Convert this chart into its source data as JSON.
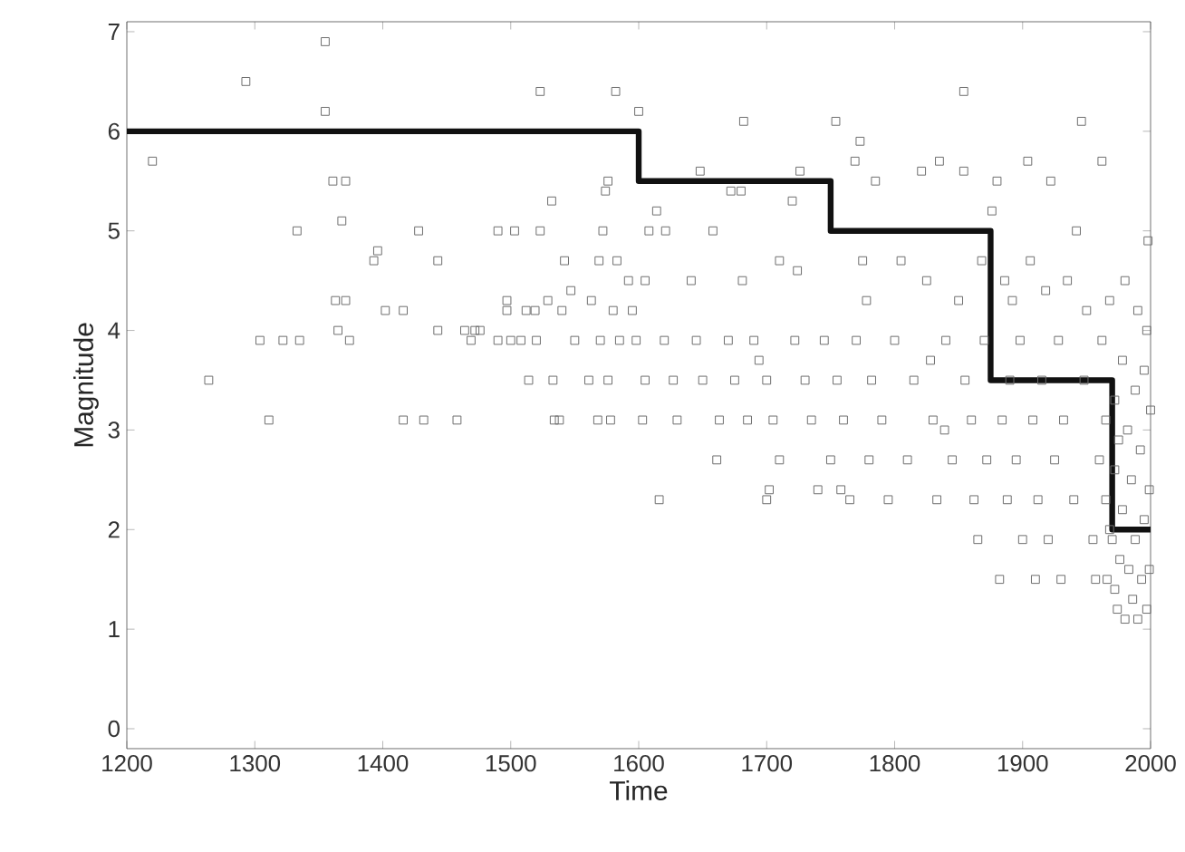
{
  "chart_data": {
    "type": "scatter",
    "xlabel": "Time",
    "ylabel": "Magnitude",
    "xlim": [
      1200,
      2000
    ],
    "xticks": [
      1200,
      1300,
      1400,
      1500,
      1600,
      1700,
      1800,
      1900,
      2000
    ],
    "ylim": [
      -0.2,
      7.1
    ],
    "yticks": [
      0,
      1,
      2,
      3,
      4,
      5,
      6,
      7
    ],
    "grid": false,
    "series": [
      {
        "marker": "square",
        "color": "#6e6e6e",
        "x": [
          1220,
          1264,
          1293,
          1304,
          1311,
          1322,
          1333,
          1335,
          1355,
          1355,
          1361,
          1363,
          1365,
          1368,
          1371,
          1371,
          1374,
          1393,
          1396,
          1402,
          1416,
          1416,
          1428,
          1432,
          1443,
          1443,
          1458,
          1464,
          1469,
          1472,
          1476,
          1490,
          1490,
          1497,
          1497,
          1500,
          1503,
          1508,
          1512,
          1514,
          1519,
          1520,
          1523,
          1523,
          1529,
          1532,
          1533,
          1534,
          1538,
          1540,
          1542,
          1547,
          1550,
          1561,
          1563,
          1568,
          1569,
          1570,
          1572,
          1574,
          1576,
          1576,
          1578,
          1580,
          1582,
          1583,
          1585,
          1592,
          1595,
          1598,
          1600,
          1603,
          1605,
          1605,
          1608,
          1614,
          1616,
          1620,
          1621,
          1627,
          1630,
          1641,
          1645,
          1648,
          1650,
          1658,
          1661,
          1663,
          1670,
          1672,
          1675,
          1680,
          1681,
          1682,
          1685,
          1690,
          1694,
          1700,
          1700,
          1702,
          1705,
          1710,
          1710,
          1720,
          1722,
          1724,
          1726,
          1730,
          1735,
          1740,
          1745,
          1750,
          1754,
          1755,
          1758,
          1760,
          1765,
          1769,
          1770,
          1773,
          1775,
          1778,
          1780,
          1782,
          1785,
          1790,
          1795,
          1800,
          1805,
          1810,
          1815,
          1821,
          1825,
          1828,
          1830,
          1833,
          1835,
          1839,
          1840,
          1845,
          1850,
          1854,
          1854,
          1855,
          1860,
          1862,
          1865,
          1868,
          1870,
          1872,
          1876,
          1880,
          1882,
          1884,
          1886,
          1888,
          1890,
          1892,
          1895,
          1898,
          1900,
          1904,
          1906,
          1908,
          1910,
          1912,
          1915,
          1918,
          1920,
          1922,
          1925,
          1928,
          1930,
          1932,
          1935,
          1940,
          1942,
          1946,
          1948,
          1950,
          1955,
          1957,
          1960,
          1962,
          1962,
          1965,
          1965,
          1966,
          1968,
          1968,
          1970,
          1972,
          1972,
          1972,
          1974,
          1975,
          1976,
          1978,
          1978,
          1980,
          1980,
          1982,
          1983,
          1985,
          1986,
          1988,
          1988,
          1990,
          1990,
          1992,
          1993,
          1995,
          1995,
          1997,
          1997,
          1998,
          1999,
          1999,
          2000
        ],
        "values": [
          5.7,
          3.5,
          6.5,
          3.9,
          3.1,
          3.9,
          5.0,
          3.9,
          6.9,
          6.2,
          5.5,
          4.3,
          4.0,
          5.1,
          5.5,
          4.3,
          3.9,
          4.7,
          4.8,
          4.2,
          4.2,
          3.1,
          5.0,
          3.1,
          4.7,
          4.0,
          3.1,
          4.0,
          3.9,
          4.0,
          4.0,
          5.0,
          3.9,
          4.3,
          4.2,
          3.9,
          5.0,
          3.9,
          4.2,
          3.5,
          4.2,
          3.9,
          6.4,
          5.0,
          4.3,
          5.3,
          3.5,
          3.1,
          3.1,
          4.2,
          4.7,
          4.4,
          3.9,
          3.5,
          4.3,
          3.1,
          4.7,
          3.9,
          5.0,
          5.4,
          5.5,
          3.5,
          3.1,
          4.2,
          6.4,
          4.7,
          3.9,
          4.5,
          4.2,
          3.9,
          6.2,
          3.1,
          4.5,
          3.5,
          5.0,
          5.2,
          2.3,
          3.9,
          5.0,
          3.5,
          3.1,
          4.5,
          3.9,
          5.6,
          3.5,
          5.0,
          2.7,
          3.1,
          3.9,
          5.4,
          3.5,
          5.4,
          4.5,
          6.1,
          3.1,
          3.9,
          3.7,
          3.5,
          2.3,
          2.4,
          3.1,
          4.7,
          2.7,
          5.3,
          3.9,
          4.6,
          5.6,
          3.5,
          3.1,
          2.4,
          3.9,
          2.7,
          6.1,
          3.5,
          2.4,
          3.1,
          2.3,
          5.7,
          3.9,
          5.9,
          4.7,
          4.3,
          2.7,
          3.5,
          5.5,
          3.1,
          2.3,
          3.9,
          4.7,
          2.7,
          3.5,
          5.6,
          4.5,
          3.7,
          3.1,
          2.3,
          5.7,
          3.0,
          3.9,
          2.7,
          4.3,
          6.4,
          5.6,
          3.5,
          3.1,
          2.3,
          1.9,
          4.7,
          3.9,
          2.7,
          5.2,
          5.5,
          1.5,
          3.1,
          4.5,
          2.3,
          3.5,
          4.3,
          2.7,
          3.9,
          1.9,
          5.7,
          4.7,
          3.1,
          1.5,
          2.3,
          3.5,
          4.4,
          1.9,
          5.5,
          2.7,
          3.9,
          1.5,
          3.1,
          4.5,
          2.3,
          5.0,
          6.1,
          3.5,
          4.2,
          1.9,
          1.5,
          2.7,
          5.7,
          3.9,
          2.3,
          3.1,
          1.5,
          4.3,
          2.0,
          1.9,
          3.3,
          2.6,
          1.4,
          1.2,
          2.9,
          1.7,
          3.7,
          2.2,
          1.1,
          4.5,
          3.0,
          1.6,
          2.5,
          1.3,
          3.4,
          1.9,
          4.2,
          1.1,
          2.8,
          1.5,
          3.6,
          2.1,
          1.2,
          4.0,
          4.9,
          2.4,
          1.6,
          3.2
        ]
      },
      {
        "type": "step",
        "color": "#111111",
        "x": [
          1200,
          1600,
          1750,
          1875,
          1970,
          2000
        ],
        "values": [
          6,
          5.5,
          5,
          3.5,
          2,
          2
        ]
      }
    ]
  }
}
